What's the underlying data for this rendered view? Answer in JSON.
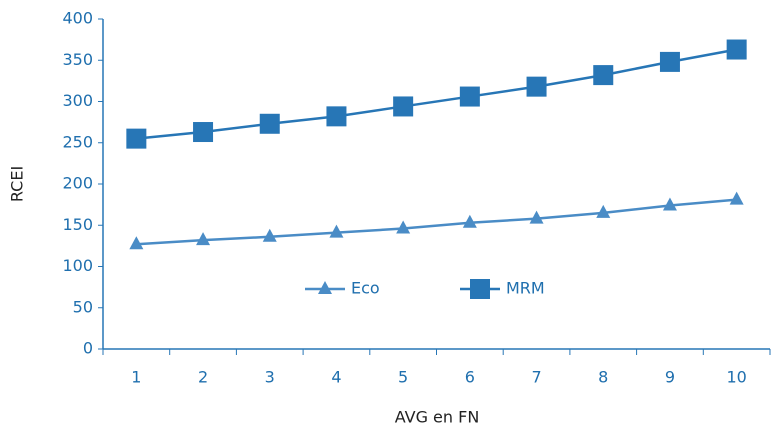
{
  "chart_data": {
    "type": "line",
    "x_label": "AVG en FN",
    "y_label": "RCEI",
    "categories": [
      1,
      2,
      3,
      4,
      5,
      6,
      7,
      8,
      9,
      10
    ],
    "series": [
      {
        "name": "Eco",
        "color": "#4a8cc6",
        "marker": "triangle",
        "values": [
          127,
          132,
          136,
          141,
          146,
          153,
          158,
          165,
          174,
          181
        ]
      },
      {
        "name": "MRM",
        "color": "#2776b6",
        "marker": "square",
        "values": [
          255,
          263,
          273,
          282,
          294,
          306,
          318,
          332,
          348,
          363
        ]
      }
    ],
    "ylim": [
      0,
      400
    ],
    "yticks": [
      0,
      50,
      100,
      150,
      200,
      250,
      300,
      350,
      400
    ],
    "grid": false,
    "legend": "center",
    "axis_color": "#2776b6"
  }
}
